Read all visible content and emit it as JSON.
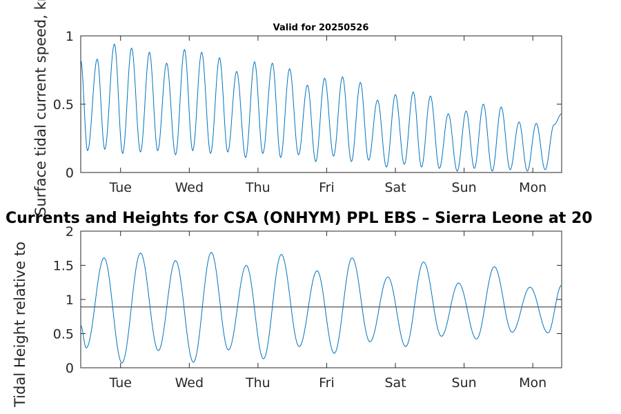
{
  "figure": {
    "main_title": "Currents and Heights for CSA (ONHYM) PPL EBS  – Sierra Leone at 20",
    "background": "#ffffff",
    "axis_color": "#262626",
    "line_color": "#0072bd"
  },
  "chart_data": [
    {
      "type": "line",
      "title": "Valid for 20250526",
      "ylabel": "Surface tidal current speed, kn",
      "xlabel": "",
      "ylim": [
        0,
        1
      ],
      "yticks": [
        0,
        0.5,
        1
      ],
      "ytick_labels": [
        "0",
        "0.5",
        "1"
      ],
      "xlim": [
        0,
        7.0
      ],
      "xticks": [
        0.58,
        1.58,
        2.58,
        3.58,
        4.58,
        5.58,
        6.58
      ],
      "xtick_labels": [
        "Tue",
        "Wed",
        "Thu",
        "Fri",
        "Sat",
        "Sun",
        "Mon"
      ],
      "x_unit": "days",
      "series": [
        {
          "values_description": "semidiurnal current speed",
          "x": [
            0.0,
            0.1,
            0.24,
            0.35,
            0.49,
            0.61,
            0.74,
            0.87,
            1.0,
            1.12,
            1.25,
            1.38,
            1.51,
            1.63,
            1.76,
            1.89,
            2.02,
            2.14,
            2.27,
            2.4,
            2.53,
            2.65,
            2.79,
            2.91,
            3.04,
            3.17,
            3.3,
            3.42,
            3.55,
            3.68,
            3.81,
            3.94,
            4.07,
            4.19,
            4.32,
            4.45,
            4.58,
            4.71,
            4.84,
            4.96,
            5.09,
            5.22,
            5.35,
            5.48,
            5.61,
            5.73,
            5.86,
            5.99,
            6.12,
            6.25,
            6.38,
            6.5,
            6.63,
            6.76,
            6.89,
            7.0
          ],
          "y": [
            0.82,
            0.16,
            0.83,
            0.17,
            0.94,
            0.14,
            0.91,
            0.15,
            0.88,
            0.16,
            0.8,
            0.13,
            0.9,
            0.16,
            0.88,
            0.14,
            0.84,
            0.15,
            0.74,
            0.11,
            0.81,
            0.14,
            0.8,
            0.11,
            0.76,
            0.13,
            0.64,
            0.08,
            0.69,
            0.12,
            0.7,
            0.08,
            0.66,
            0.09,
            0.53,
            0.04,
            0.57,
            0.06,
            0.59,
            0.04,
            0.56,
            0.03,
            0.43,
            0.01,
            0.45,
            0.03,
            0.5,
            0.01,
            0.48,
            0.02,
            0.37,
            0.01,
            0.36,
            0.02,
            0.35,
            0.43
          ]
        }
      ]
    },
    {
      "type": "line",
      "title": "",
      "ylabel": "Tidal Height relative to",
      "xlabel": "",
      "ylim": [
        0,
        2
      ],
      "yticks": [
        0,
        0.5,
        1,
        1.5,
        2
      ],
      "ytick_labels": [
        "0",
        "0.5",
        "1",
        "1.5",
        "2"
      ],
      "xlim": [
        0,
        7.0
      ],
      "xticks": [
        0.58,
        1.58,
        2.58,
        3.58,
        4.58,
        5.58,
        6.58
      ],
      "xtick_labels": [
        "Tue",
        "Wed",
        "Thu",
        "Fri",
        "Sat",
        "Sun",
        "Mon"
      ],
      "x_unit": "days",
      "reference_level": 0.89,
      "series": [
        {
          "values_description": "tidal height",
          "x": [
            0.0,
            0.08,
            0.34,
            0.6,
            0.87,
            1.13,
            1.38,
            1.64,
            1.9,
            2.15,
            2.41,
            2.66,
            2.92,
            3.18,
            3.44,
            3.69,
            3.95,
            4.21,
            4.47,
            4.73,
            4.99,
            5.25,
            5.5,
            5.76,
            6.02,
            6.28,
            6.54,
            6.8,
            7.0
          ],
          "y": [
            0.62,
            0.29,
            1.61,
            0.07,
            1.68,
            0.25,
            1.57,
            0.08,
            1.69,
            0.26,
            1.5,
            0.13,
            1.66,
            0.31,
            1.42,
            0.21,
            1.61,
            0.38,
            1.33,
            0.31,
            1.55,
            0.46,
            1.24,
            0.42,
            1.48,
            0.52,
            1.18,
            0.51,
            1.21
          ]
        }
      ]
    }
  ]
}
